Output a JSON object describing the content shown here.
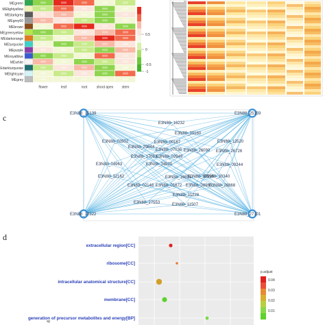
{
  "panel_a": {
    "modules": [
      "MEgreen",
      "MElightyellow",
      "MEdarkgrey",
      "MEgrey60",
      "MEbrown",
      "MEgreenyellow",
      "MEdarkorange",
      "MEturquoise",
      "MEpurple",
      "MEroyalblue",
      "MEwhite",
      "MEdarkturquoise",
      "MElightcyan",
      "MEgrey"
    ],
    "module_colors": [
      "#2fa84f",
      "#f2f2b8",
      "#5a5a5a",
      "#9a9a9a",
      "#8b4a1a",
      "#b6e64a",
      "#e07a1e",
      "#3fd0c8",
      "#8a3ea8",
      "#3a5ad0",
      "#f4f4f4",
      "#1e6e72",
      "#d4f4f8",
      "#bdbdbd"
    ],
    "tissues": [
      "flower",
      "leaf",
      "root",
      "shoot apex",
      "stem"
    ],
    "colorbar_ticks": [
      "0.5",
      "0",
      "-0.5",
      "-1"
    ]
  },
  "panel_c": {
    "letter": "c",
    "hubs": [
      "E3N88_15139",
      "E3N88_25159",
      "E3N88_12322",
      "E3N88_27101"
    ],
    "nodes": [
      "E3N88_16232",
      "E3N88_39160",
      "E3N88_02802",
      "E3N88_00167",
      "E3N88_12520",
      "E3N88_29844",
      "E3N88_07036",
      "E3N88_26090",
      "E3N88_26726",
      "E3N88_17063",
      "E3N88_02949",
      "E3N88_04963",
      "E3N88_34520",
      "E3N88_09244",
      "E3N88_32162",
      "E3N88_16891",
      "E3N88_09996",
      "E3N88_30340",
      "E3N88_02148",
      "E3N88_01672",
      "E3N88_08963",
      "E3N88_26868",
      "E3N88_31228",
      "E3N88_27553",
      "E3N88_11507"
    ],
    "node_labels_visible": [
      "E3N88_16232",
      "E3N88_39160",
      "E3N88_02802",
      "E3N88_00167",
      "E3N88_12520",
      "E3N88_29844",
      "E3N88_07036",
      "E3N88_26090",
      "E3N88_26726",
      "E3N88_17063",
      "E3N88_02949",
      "E3N88_04963",
      "E3N88_34520",
      "E3N88_09244",
      "E3N88_32162",
      "E3N88_16891",
      "E3N88_09996",
      "E3N88_30340",
      "E3N88_02148",
      "E3N88_01672",
      "E3N88_08963",
      "E3N88_26868",
      "E3N88_31228",
      "E3N88_27553",
      "E3N88_11507"
    ]
  },
  "panel_d": {
    "letter": "d",
    "terms": [
      "extracellular region[CC]",
      "ribosome[CC]",
      "intracellular anatomical structure[CC]",
      "membrane[CC]",
      "generation of precursor metabolites and energy[BP]"
    ],
    "legend_title": "p.adjust",
    "legend_ticks": [
      "0.04",
      "0.03",
      "0.02",
      "0.01"
    ],
    "y_axis_partial": "ay"
  }
}
